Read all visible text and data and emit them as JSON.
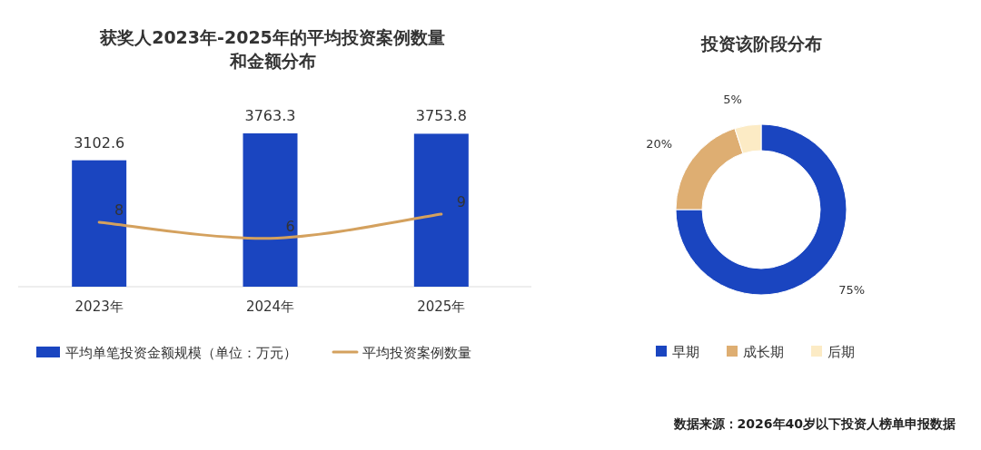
{
  "chart_data": [
    {
      "type": "bar",
      "title": "获奖人2023年-2025年的平均投资案例数量和金额分布",
      "categories": [
        "2023年",
        "2024年",
        "2025年"
      ],
      "series": [
        {
          "name": "平均单笔投资金额规模（单位：万元）",
          "color": "#1a45c0",
          "values": [
            3102.6,
            3763.3,
            3753.8
          ]
        },
        {
          "name": "平均投资案例数量",
          "type": "line",
          "axis": "y2",
          "color": "#d4a15e",
          "values": [
            8,
            6,
            9
          ]
        }
      ],
      "data_labels": true,
      "legend": "bottom",
      "tick_labels": "x"
    },
    {
      "type": "donut",
      "title": "投资该阶段分布",
      "categories": [
        "早期",
        "成长期",
        "后期"
      ],
      "values": [
        75,
        20,
        5
      ],
      "colors": [
        "#1a45c0",
        "#deae72",
        "#fcebc5"
      ],
      "value_labels": [
        "75%",
        "20%",
        "5%"
      ],
      "legend": "bottom",
      "annotations": [
        "数据来源：2026年40岁以下投资人榜单申报数据"
      ]
    }
  ]
}
